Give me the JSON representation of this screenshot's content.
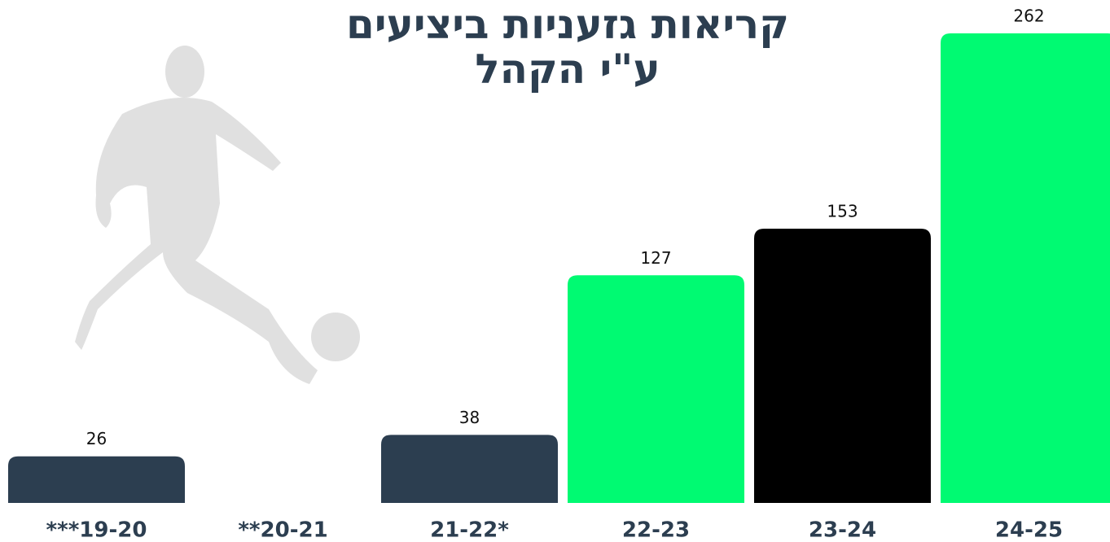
{
  "chart_data": {
    "type": "bar",
    "title": "קריאות גזעניות ביציעים",
    "subtitle": "ע\"י הקהל",
    "categories": [
      "***19-20",
      "**20-21",
      "21-22*",
      "22-23",
      "23-24",
      "24-25"
    ],
    "values": [
      26,
      null,
      38,
      127,
      153,
      262
    ],
    "colors": [
      "#2c3e50",
      "#2c3e50",
      "#2c3e50",
      "#00fa72",
      "#000000",
      "#00fa72"
    ]
  }
}
